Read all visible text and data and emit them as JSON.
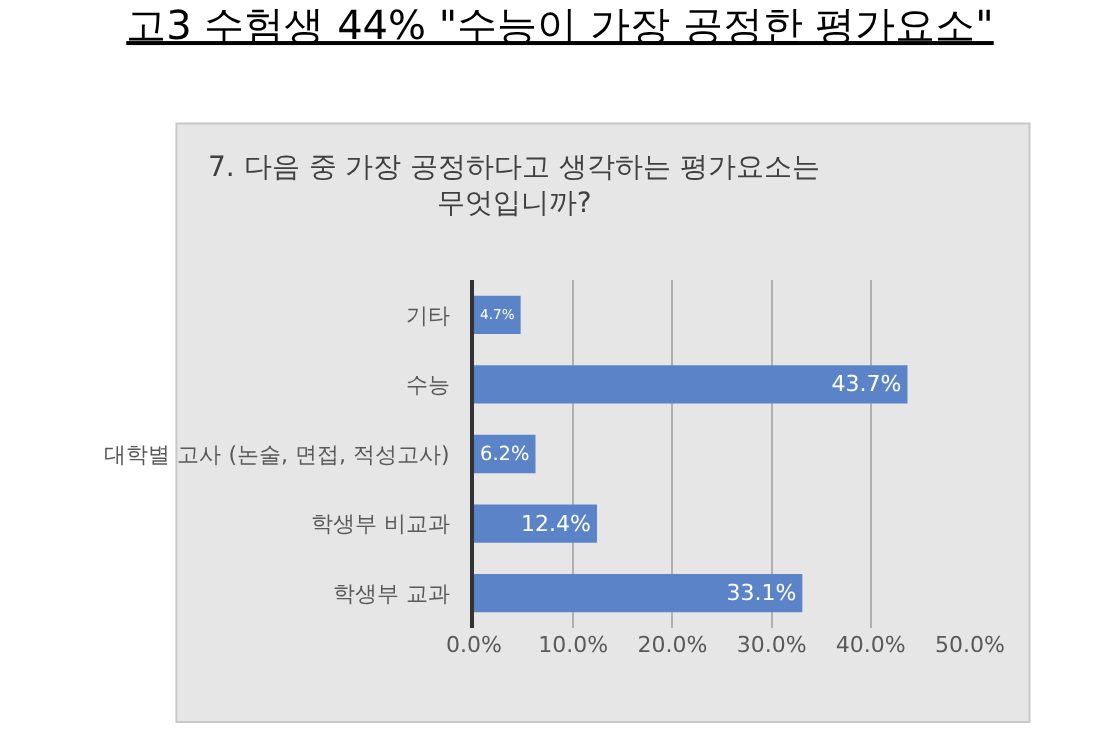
{
  "chart_data": {
    "type": "bar",
    "orientation": "horizontal",
    "title": "고3 수험생 44% \"수능이 가장 공정한 평가요소\"",
    "subtitle": "7. 다음 중 가장 공정하다고 생각하는 평가요소는 무엇입니까?",
    "categories": [
      "기타",
      "수능",
      "대학별 고사 (논술, 면접, 적성고사)",
      "학생부 비교과",
      "학생부 교과"
    ],
    "values": [
      4.7,
      43.7,
      6.2,
      12.4,
      33.1
    ],
    "value_labels": [
      "4.7%",
      "43.7%",
      "6.2%",
      "12.4%",
      "33.1%"
    ],
    "color": "#5b84c8",
    "xlim": [
      0,
      50
    ],
    "xticks": [
      {
        "value": 0,
        "label": "0.0%"
      },
      {
        "value": 10,
        "label": "10.0%"
      },
      {
        "value": 20,
        "label": "20.0%"
      },
      {
        "value": 30,
        "label": "30.0%"
      },
      {
        "value": 40,
        "label": "40.0%"
      },
      {
        "value": 50,
        "label": "50.0%"
      }
    ],
    "grid": "x",
    "legend": false
  }
}
